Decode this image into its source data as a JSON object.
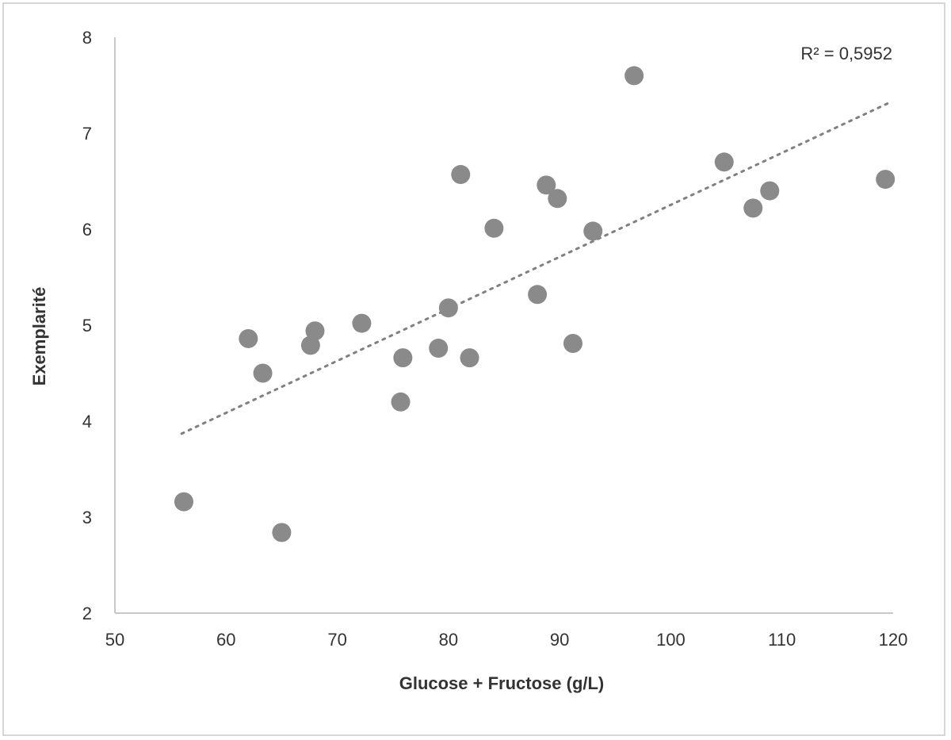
{
  "chart_data": {
    "type": "scatter",
    "title": "",
    "xlabel": "Glucose + Fructose (g/L)",
    "ylabel": "Exemplarité",
    "xlim": [
      50,
      120
    ],
    "ylim": [
      2,
      8
    ],
    "x_ticks": [
      "50",
      "60",
      "70",
      "80",
      "90",
      "100",
      "110",
      "120"
    ],
    "y_ticks": [
      "2",
      "3",
      "4",
      "5",
      "6",
      "7",
      "8"
    ],
    "grid": false,
    "legend": "none",
    "point_color": "#8a8a8a",
    "trendline_color": "#808080",
    "annotation": "R² = 0,5952",
    "trendline": {
      "style": "dotted",
      "x": [
        56.0,
        119.5
      ],
      "y": [
        3.87,
        7.31
      ]
    },
    "points": [
      {
        "x": 56.2,
        "y": 3.16
      },
      {
        "x": 62.0,
        "y": 4.86
      },
      {
        "x": 63.3,
        "y": 4.5
      },
      {
        "x": 65.0,
        "y": 2.84
      },
      {
        "x": 67.6,
        "y": 4.79
      },
      {
        "x": 68.0,
        "y": 4.94
      },
      {
        "x": 72.2,
        "y": 5.02
      },
      {
        "x": 75.7,
        "y": 4.2
      },
      {
        "x": 75.9,
        "y": 4.66
      },
      {
        "x": 79.1,
        "y": 4.76
      },
      {
        "x": 80.0,
        "y": 5.18
      },
      {
        "x": 81.1,
        "y": 6.57
      },
      {
        "x": 81.9,
        "y": 4.66
      },
      {
        "x": 84.1,
        "y": 6.01
      },
      {
        "x": 88.0,
        "y": 5.32
      },
      {
        "x": 88.8,
        "y": 6.46
      },
      {
        "x": 89.8,
        "y": 6.32
      },
      {
        "x": 91.2,
        "y": 4.81
      },
      {
        "x": 93.0,
        "y": 5.98
      },
      {
        "x": 96.7,
        "y": 7.6
      },
      {
        "x": 104.8,
        "y": 6.7
      },
      {
        "x": 107.4,
        "y": 6.22
      },
      {
        "x": 108.9,
        "y": 6.4
      },
      {
        "x": 119.3,
        "y": 6.52
      }
    ]
  }
}
